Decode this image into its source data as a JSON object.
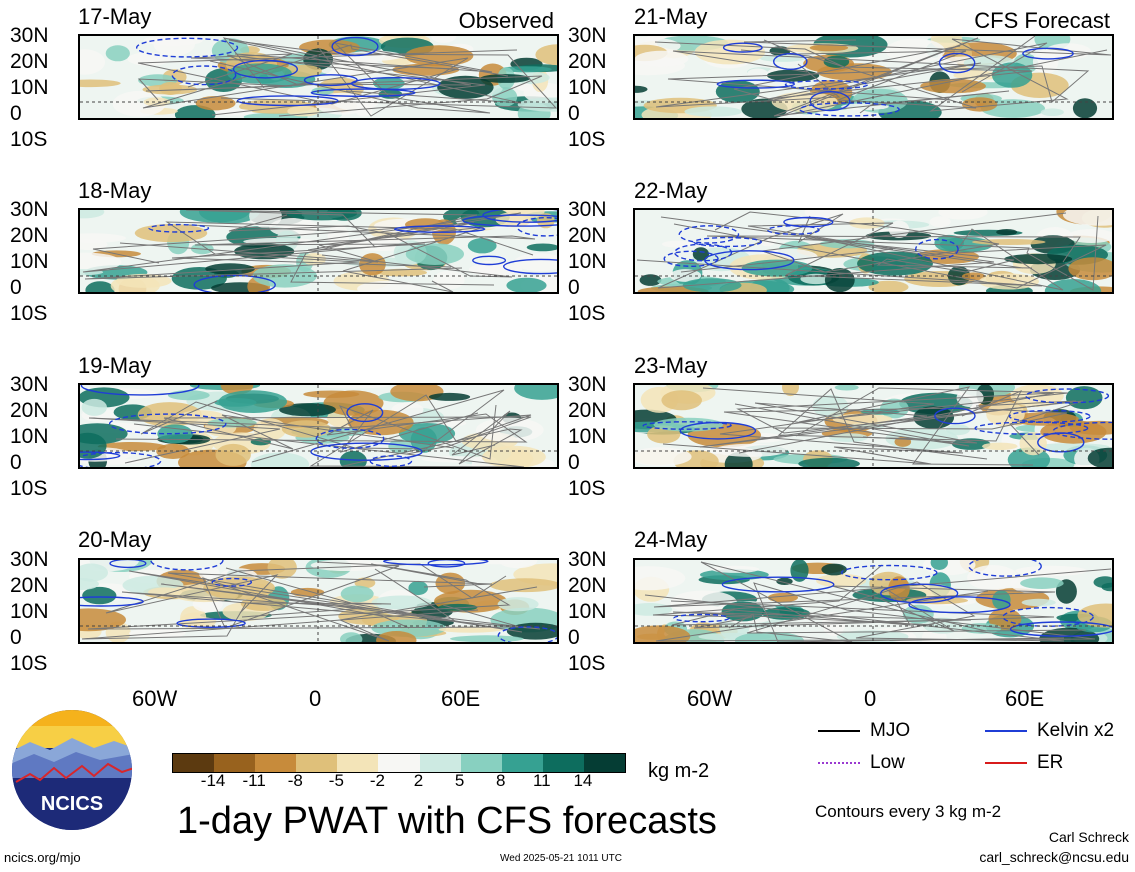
{
  "panels": {
    "observed": [
      {
        "date": "17-May"
      },
      {
        "date": "18-May"
      },
      {
        "date": "19-May"
      },
      {
        "date": "20-May"
      }
    ],
    "forecast": [
      {
        "date": "21-May"
      },
      {
        "date": "22-May"
      },
      {
        "date": "23-May"
      },
      {
        "date": "24-May"
      }
    ],
    "observed_tag": "Observed",
    "forecast_tag": "CFS Forecast"
  },
  "lat_labels": [
    "30N",
    "20N",
    "10N",
    "0",
    "10S"
  ],
  "lon_labels": [
    "60W",
    "0",
    "60E"
  ],
  "colorbar": {
    "ticks": [
      "-14",
      "-11",
      "-8",
      "-5",
      "-2",
      "2",
      "5",
      "8",
      "11",
      "14"
    ],
    "colors": [
      "#5c3a10",
      "#98621e",
      "#c78b3b",
      "#dfc07a",
      "#f3e4b8",
      "#f7f7f4",
      "#cdeae2",
      "#88d0c0",
      "#36a192",
      "#0d6d5e",
      "#053d34"
    ],
    "unit": "kg m-2"
  },
  "title": "1-day PWAT with CFS forecasts",
  "legend": [
    {
      "label": "MJO",
      "color": "#000000"
    },
    {
      "label": "Kelvin x2",
      "color": "#1f3dd6"
    },
    {
      "label": "Low",
      "color": "#9a3ad1"
    },
    {
      "label": "ER",
      "color": "#d81b1b"
    }
  ],
  "contour_note": "Contours every 3 kg m-2",
  "credit": {
    "name": "Carl Schreck",
    "email": "carl_schreck@ncsu.edu"
  },
  "footer": {
    "site": "ncics.org/mjo",
    "timestamp": "Wed 2025-05-21 1011 UTC"
  },
  "logo": {
    "text": "NCICS"
  }
}
